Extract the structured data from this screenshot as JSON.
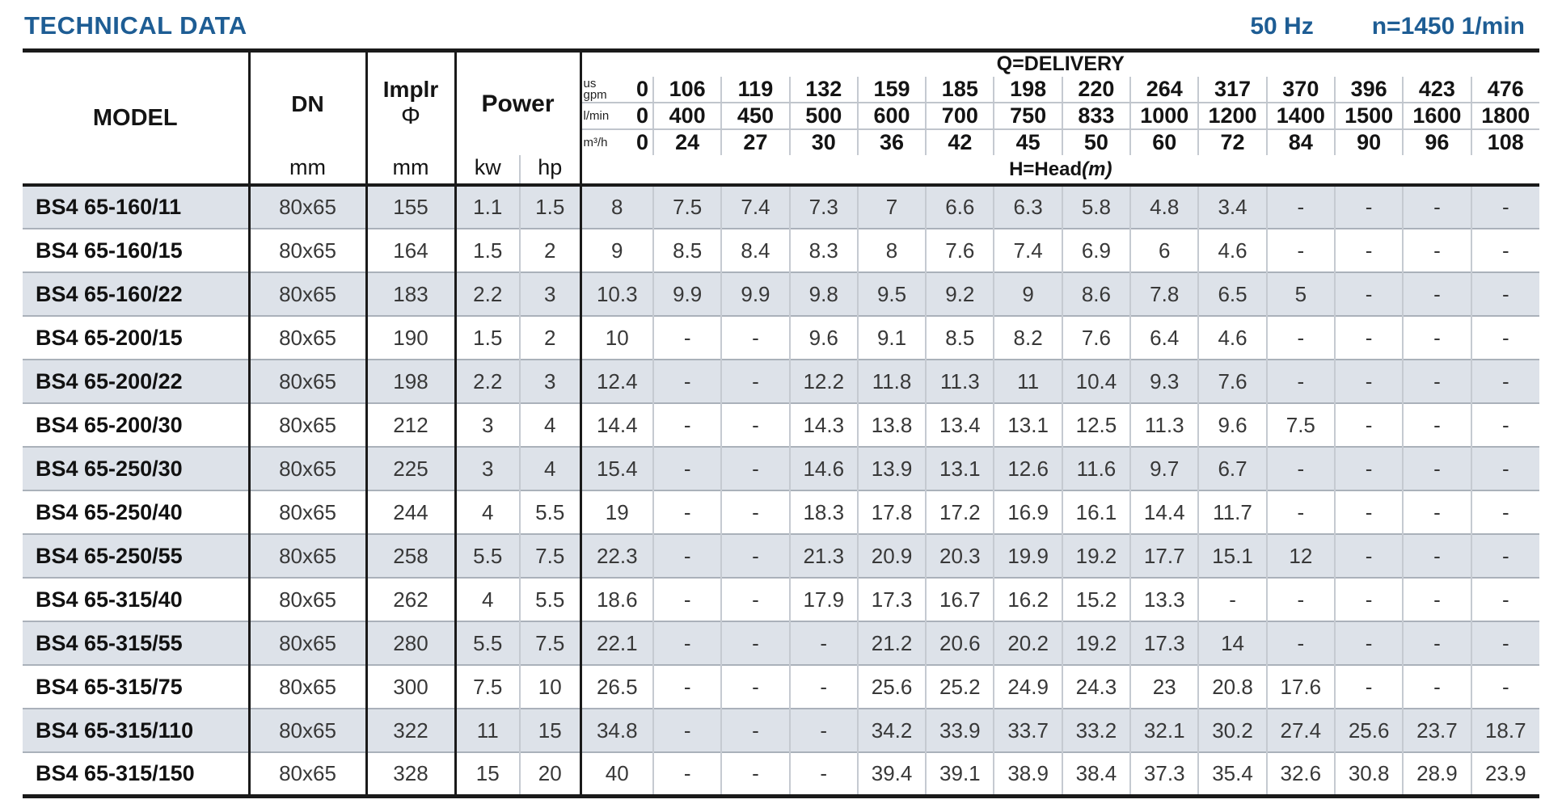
{
  "page": {
    "title": "TECHNICAL DATA",
    "frequency": "50 Hz",
    "speed": "n=1450 1/min"
  },
  "table": {
    "header": {
      "model": "MODEL",
      "dn": "DN",
      "implr_line1": "Implr",
      "implr_line2": "Φ",
      "power": "Power",
      "dn_unit": "mm",
      "implr_unit": "mm",
      "kw": "kw",
      "hp": "hp",
      "delivery_title": "Q=DELIVERY",
      "head_label": "H=Head",
      "head_unit": "(m)",
      "units": [
        {
          "label": "us\ngpm",
          "values": [
            "0",
            "106",
            "119",
            "132",
            "159",
            "185",
            "198",
            "220",
            "264",
            "317",
            "370",
            "396",
            "423",
            "476"
          ]
        },
        {
          "label": "l/min",
          "values": [
            "0",
            "400",
            "450",
            "500",
            "600",
            "700",
            "750",
            "833",
            "1000",
            "1200",
            "1400",
            "1500",
            "1600",
            "1800"
          ]
        },
        {
          "label": "m³/h",
          "values": [
            "0",
            "24",
            "27",
            "30",
            "36",
            "42",
            "45",
            "50",
            "60",
            "72",
            "84",
            "90",
            "96",
            "108"
          ]
        }
      ]
    },
    "rows": [
      {
        "model": "BS4 65-160/11",
        "dn": "80x65",
        "implr": "155",
        "kw": "1.1",
        "hp": "1.5",
        "head": [
          "8",
          "7.5",
          "7.4",
          "7.3",
          "7",
          "6.6",
          "6.3",
          "5.8",
          "4.8",
          "3.4",
          "-",
          "-",
          "-",
          "-"
        ]
      },
      {
        "model": "BS4 65-160/15",
        "dn": "80x65",
        "implr": "164",
        "kw": "1.5",
        "hp": "2",
        "head": [
          "9",
          "8.5",
          "8.4",
          "8.3",
          "8",
          "7.6",
          "7.4",
          "6.9",
          "6",
          "4.6",
          "-",
          "-",
          "-",
          "-"
        ]
      },
      {
        "model": "BS4 65-160/22",
        "dn": "80x65",
        "implr": "183",
        "kw": "2.2",
        "hp": "3",
        "head": [
          "10.3",
          "9.9",
          "9.9",
          "9.8",
          "9.5",
          "9.2",
          "9",
          "8.6",
          "7.8",
          "6.5",
          "5",
          "-",
          "-",
          "-"
        ]
      },
      {
        "model": "BS4 65-200/15",
        "dn": "80x65",
        "implr": "190",
        "kw": "1.5",
        "hp": "2",
        "head": [
          "10",
          "-",
          "-",
          "9.6",
          "9.1",
          "8.5",
          "8.2",
          "7.6",
          "6.4",
          "4.6",
          "-",
          "-",
          "-",
          "-"
        ]
      },
      {
        "model": "BS4 65-200/22",
        "dn": "80x65",
        "implr": "198",
        "kw": "2.2",
        "hp": "3",
        "head": [
          "12.4",
          "-",
          "-",
          "12.2",
          "11.8",
          "11.3",
          "11",
          "10.4",
          "9.3",
          "7.6",
          "-",
          "-",
          "-",
          "-"
        ]
      },
      {
        "model": "BS4 65-200/30",
        "dn": "80x65",
        "implr": "212",
        "kw": "3",
        "hp": "4",
        "head": [
          "14.4",
          "-",
          "-",
          "14.3",
          "13.8",
          "13.4",
          "13.1",
          "12.5",
          "11.3",
          "9.6",
          "7.5",
          "-",
          "-",
          "-"
        ]
      },
      {
        "model": "BS4 65-250/30",
        "dn": "80x65",
        "implr": "225",
        "kw": "3",
        "hp": "4",
        "head": [
          "15.4",
          "-",
          "-",
          "14.6",
          "13.9",
          "13.1",
          "12.6",
          "11.6",
          "9.7",
          "6.7",
          "-",
          "-",
          "-",
          "-"
        ]
      },
      {
        "model": "BS4 65-250/40",
        "dn": "80x65",
        "implr": "244",
        "kw": "4",
        "hp": "5.5",
        "head": [
          "19",
          "-",
          "-",
          "18.3",
          "17.8",
          "17.2",
          "16.9",
          "16.1",
          "14.4",
          "11.7",
          "-",
          "-",
          "-",
          "-"
        ]
      },
      {
        "model": "BS4 65-250/55",
        "dn": "80x65",
        "implr": "258",
        "kw": "5.5",
        "hp": "7.5",
        "head": [
          "22.3",
          "-",
          "-",
          "21.3",
          "20.9",
          "20.3",
          "19.9",
          "19.2",
          "17.7",
          "15.1",
          "12",
          "-",
          "-",
          "-"
        ]
      },
      {
        "model": "BS4 65-315/40",
        "dn": "80x65",
        "implr": "262",
        "kw": "4",
        "hp": "5.5",
        "head": [
          "18.6",
          "-",
          "-",
          "17.9",
          "17.3",
          "16.7",
          "16.2",
          "15.2",
          "13.3",
          "-",
          "-",
          "-",
          "-",
          "-"
        ]
      },
      {
        "model": "BS4 65-315/55",
        "dn": "80x65",
        "implr": "280",
        "kw": "5.5",
        "hp": "7.5",
        "head": [
          "22.1",
          "-",
          "-",
          "-",
          "21.2",
          "20.6",
          "20.2",
          "19.2",
          "17.3",
          "14",
          "-",
          "-",
          "-",
          "-"
        ]
      },
      {
        "model": "BS4 65-315/75",
        "dn": "80x65",
        "implr": "300",
        "kw": "7.5",
        "hp": "10",
        "head": [
          "26.5",
          "-",
          "-",
          "-",
          "25.6",
          "25.2",
          "24.9",
          "24.3",
          "23",
          "20.8",
          "17.6",
          "-",
          "-",
          "-"
        ]
      },
      {
        "model": "BS4 65-315/110",
        "dn": "80x65",
        "implr": "322",
        "kw": "11",
        "hp": "15",
        "head": [
          "34.8",
          "-",
          "-",
          "-",
          "34.2",
          "33.9",
          "33.7",
          "33.2",
          "32.1",
          "30.2",
          "27.4",
          "25.6",
          "23.7",
          "18.7"
        ]
      },
      {
        "model": "BS4 65-315/150",
        "dn": "80x65",
        "implr": "328",
        "kw": "15",
        "hp": "20",
        "head": [
          "40",
          "-",
          "-",
          "-",
          "39.4",
          "39.1",
          "38.9",
          "38.4",
          "37.3",
          "35.4",
          "32.6",
          "30.8",
          "28.9",
          "23.9"
        ]
      }
    ]
  }
}
